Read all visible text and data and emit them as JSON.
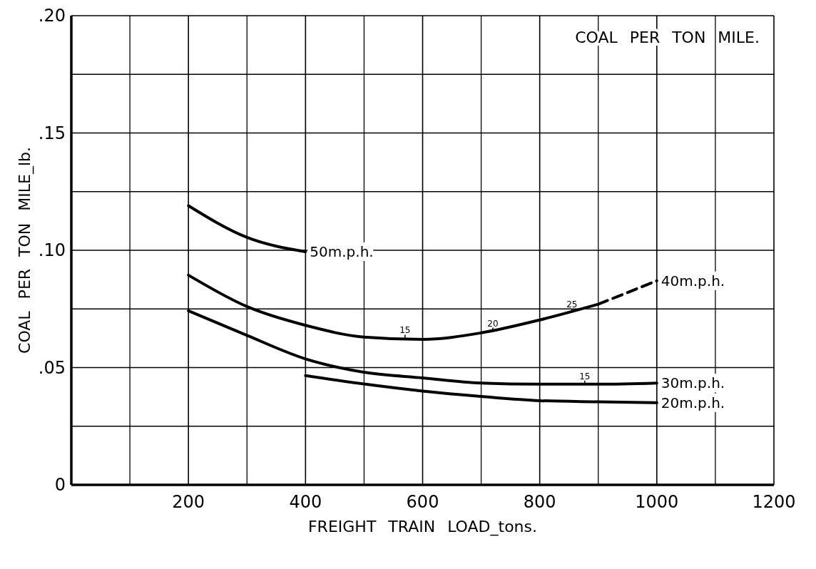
{
  "chart_data": {
    "type": "line",
    "title": "COAL PER TON MILE.",
    "xlabel": "FREIGHT TRAIN LOAD_tons.",
    "ylabel": "COAL PER TON MILE_lb.",
    "xlim": [
      0,
      1200
    ],
    "ylim": [
      0,
      0.2
    ],
    "xticks": [
      {
        "value": 100,
        "label": null
      },
      200,
      {
        "value": 300,
        "label": null
      },
      400,
      {
        "value": 500,
        "label": null
      },
      600,
      {
        "value": 700,
        "label": null
      },
      800,
      {
        "value": 900,
        "label": null
      },
      1000,
      {
        "value": 1100,
        "label": null
      },
      1200
    ],
    "yticks": [
      0,
      {
        "value": 0.025,
        "label": null
      },
      {
        "value": 0.05,
        "label": ".05"
      },
      {
        "value": 0.075,
        "label": null
      },
      {
        "value": 0.1,
        "label": ".10"
      },
      {
        "value": 0.125,
        "label": null
      },
      {
        "value": 0.15,
        "label": ".15"
      },
      {
        "value": 0.175,
        "label": null
      },
      {
        "value": 0.2,
        "label": ".20"
      }
    ],
    "grid": true,
    "legend": false,
    "marker": "none",
    "series": [
      {
        "name": "50m.p.h.",
        "color": "#000000",
        "x": [
          200,
          300,
          400
        ],
        "values": [
          0.119,
          0.1055,
          0.0994
        ]
      },
      {
        "color": "#000000",
        "x": [
          200,
          300,
          400,
          500,
          600,
          700,
          800,
          900
        ],
        "values": [
          0.0894,
          0.076,
          0.068,
          0.063,
          0.062,
          0.0648,
          0.0703,
          0.077
        ]
      },
      {
        "name": "40m.p.h.",
        "color": "#000000",
        "line_style": "dashed",
        "x": [
          900,
          1000
        ],
        "values": [
          0.077,
          0.087
        ]
      },
      {
        "name": "30m.p.h.",
        "color": "#000000",
        "x": [
          200,
          300,
          400,
          500,
          600,
          700,
          800,
          900,
          1000
        ],
        "values": [
          0.0742,
          0.0637,
          0.0537,
          0.048,
          0.0456,
          0.0434,
          0.0429,
          0.0429,
          0.0434
        ]
      },
      {
        "name": "20m.p.h.",
        "color": "#000000",
        "x": [
          400,
          500,
          600,
          700,
          800,
          900,
          1000
        ],
        "values": [
          0.0466,
          0.043,
          0.04,
          0.0377,
          0.0359,
          0.0354,
          0.035
        ]
      }
    ],
    "annotations": [
      {
        "text": "15",
        "x": 570,
        "y": 0.0625
      },
      {
        "text": "20",
        "x": 720,
        "y": 0.0655
      },
      {
        "text": "25",
        "x": 855,
        "y": 0.0735
      },
      {
        "text": "15",
        "x": 877,
        "y": 0.0429
      }
    ]
  }
}
